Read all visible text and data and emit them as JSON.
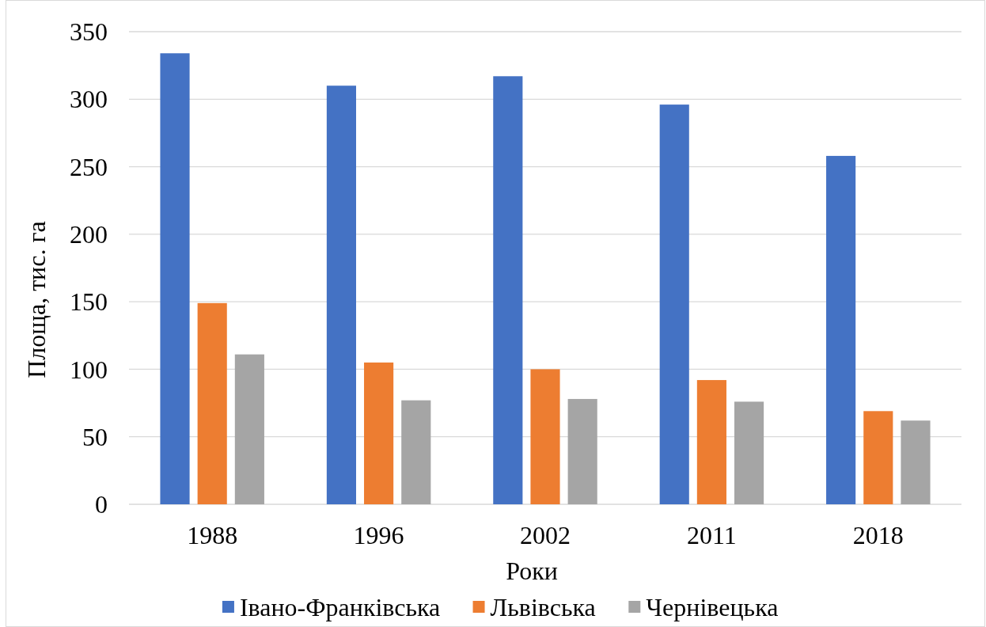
{
  "chart_data": {
    "type": "bar",
    "categories": [
      "1988",
      "1996",
      "2002",
      "2011",
      "2018"
    ],
    "series": [
      {
        "name": "Івано-Франківська",
        "color": "#4472c4",
        "values": [
          334,
          310,
          317,
          296,
          258
        ]
      },
      {
        "name": "Львівська",
        "color": "#ed7d31",
        "values": [
          149,
          105,
          100,
          92,
          69
        ]
      },
      {
        "name": "Чернівецька",
        "color": "#a5a5a5",
        "values": [
          111,
          77,
          78,
          76,
          62
        ]
      }
    ],
    "xlabel": "Роки",
    "ylabel": "Площа, тис. га",
    "ylim": [
      0,
      350
    ],
    "yticks": [
      0,
      50,
      100,
      150,
      200,
      250,
      300,
      350
    ],
    "grid": "y",
    "legend": "bottom"
  }
}
